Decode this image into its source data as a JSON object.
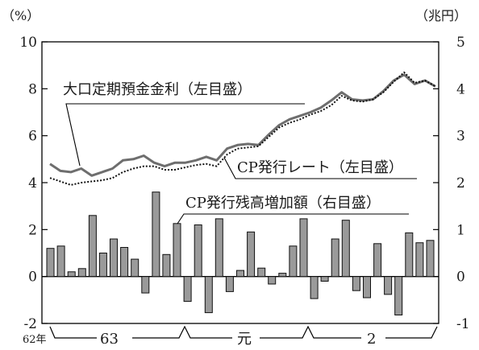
{
  "chart_data": {
    "type": "bar+line",
    "left_axis": {
      "unit": "（%）",
      "ticks": [
        "10",
        "8",
        "6",
        "4",
        "2",
        "0",
        "-2"
      ],
      "range": [
        -2,
        10
      ]
    },
    "right_axis": {
      "unit": "（兆円）",
      "ticks": [
        "5",
        "4",
        "3",
        "2",
        "1",
        "0",
        "-1"
      ],
      "range": [
        -1,
        5
      ]
    },
    "x_eras": {
      "start_label": "62年",
      "labels": [
        "63",
        "元",
        "2"
      ]
    },
    "annotations": {
      "deposit_rate": "大口定期預金金利（左目盛）",
      "cp_rate": "CP発行レート（左目盛）",
      "cp_issue": "CP発行残高増加額（右目盛）"
    },
    "series": [
      {
        "name": "大口定期預金金利（左目盛）",
        "axis": "left",
        "style": "solid",
        "values": [
          4.8,
          4.5,
          4.45,
          4.6,
          4.3,
          4.45,
          4.6,
          4.95,
          5.0,
          5.15,
          4.85,
          4.7,
          4.85,
          4.85,
          4.95,
          5.1,
          4.95,
          5.45,
          5.6,
          5.65,
          5.6,
          6.05,
          6.45,
          6.7,
          6.85,
          7.0,
          7.2,
          7.5,
          7.85,
          7.55,
          7.5,
          7.55,
          7.9,
          8.35,
          8.6,
          8.2,
          8.35,
          8.1
        ]
      },
      {
        "name": "CP発行レート（左目盛）",
        "axis": "left",
        "style": "dotted",
        "values": [
          4.2,
          4.05,
          3.9,
          4.0,
          4.05,
          4.1,
          4.2,
          4.45,
          4.6,
          4.7,
          4.7,
          4.55,
          4.55,
          4.65,
          4.75,
          4.8,
          4.7,
          5.2,
          5.45,
          5.5,
          5.55,
          5.95,
          6.35,
          6.55,
          6.7,
          6.9,
          7.05,
          7.3,
          7.7,
          7.5,
          7.45,
          7.55,
          7.85,
          8.3,
          8.7,
          8.25,
          8.35,
          8.1
        ]
      },
      {
        "name": "CP発行残高増加額（右目盛）",
        "axis": "right",
        "type": "bar",
        "values": [
          0.6,
          0.65,
          0.1,
          0.17,
          1.3,
          0.5,
          0.8,
          0.62,
          0.37,
          -0.35,
          1.8,
          0.47,
          1.13,
          -0.53,
          1.1,
          -0.77,
          1.23,
          -0.32,
          0.13,
          0.95,
          0.18,
          -0.16,
          0.07,
          0.65,
          1.23,
          -0.47,
          -0.1,
          0.8,
          1.2,
          -0.3,
          -0.45,
          0.7,
          -0.38,
          -0.82,
          0.93,
          0.72,
          0.77
        ]
      }
    ],
    "grid": false,
    "legend": "annotations"
  }
}
